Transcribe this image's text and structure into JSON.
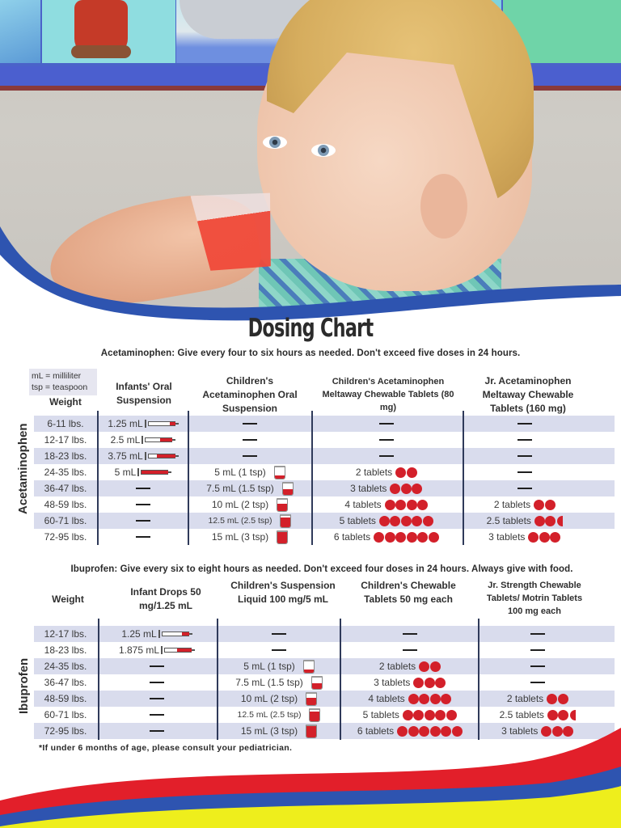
{
  "title": "Dosing Chart",
  "colors": {
    "brand_blue": "#2e54b0",
    "brand_red": "#e21f2a",
    "brand_yellow": "#eeee1c",
    "row_shade": "#d9dced",
    "dose_red": "#d3202a"
  },
  "legend": {
    "line1": "mL = milliliter",
    "line2": "tsp = teaspoon"
  },
  "acetaminophen": {
    "instruction": "Acetaminophen: Give every four to six hours as needed. Don't exceed five doses in 24 hours.",
    "side_label": "Acetaminophen",
    "headers": {
      "weight": "Weight",
      "infants_oral": "Infants' Oral Suspension",
      "childrens_oral": "Children's Acetaminophen Oral Suspension",
      "childrens_meltaway": "Children's Acetaminophen Meltaway Chewable Tablets (80 mg)",
      "jr_meltaway": "Jr. Acetaminophen Meltaway Chewable Tablets (160 mg)"
    },
    "rows": [
      {
        "weight": "6-11 lbs.",
        "infants": "1.25 mL",
        "infants_fill": 0.12,
        "childrens": "—",
        "childrens_fill": 0,
        "meltaway80": "—",
        "meltaway80_count": 0,
        "meltaway160": "—",
        "meltaway160_count": 0
      },
      {
        "weight": "12-17 lbs.",
        "infants": "2.5 mL",
        "infants_fill": 0.25,
        "childrens": "—",
        "childrens_fill": 0,
        "meltaway80": "—",
        "meltaway80_count": 0,
        "meltaway160": "—",
        "meltaway160_count": 0
      },
      {
        "weight": "18-23 lbs.",
        "infants": "3.75 mL",
        "infants_fill": 0.38,
        "childrens": "—",
        "childrens_fill": 0,
        "meltaway80": "—",
        "meltaway80_count": 0,
        "meltaway160": "—",
        "meltaway160_count": 0
      },
      {
        "weight": "24-35 lbs.",
        "infants": "5 mL",
        "infants_fill": 0.55,
        "childrens": "5 mL (1 tsp)",
        "childrens_fill": 0.25,
        "meltaway80": "2 tablets",
        "meltaway80_count": 2,
        "meltaway160": "—",
        "meltaway160_count": 0
      },
      {
        "weight": "36-47 lbs.",
        "infants": "—",
        "infants_fill": 0,
        "childrens": "7.5 mL (1.5 tsp)",
        "childrens_fill": 0.45,
        "meltaway80": "3 tablets",
        "meltaway80_count": 3,
        "meltaway160": "—",
        "meltaway160_count": 0
      },
      {
        "weight": "48-59 lbs.",
        "infants": "—",
        "infants_fill": 0,
        "childrens": "10 mL (2 tsp)",
        "childrens_fill": 0.6,
        "meltaway80": "4 tablets",
        "meltaway80_count": 4,
        "meltaway160": "2 tablets",
        "meltaway160_count": 2
      },
      {
        "weight": "60-71 lbs.",
        "infants": "—",
        "infants_fill": 0,
        "childrens": "12.5 mL (2.5 tsp)",
        "childrens_fill": 0.8,
        "meltaway80": "5 tablets",
        "meltaway80_count": 5,
        "meltaway160": "2.5 tablets",
        "meltaway160_count": 2.5
      },
      {
        "weight": "72-95 lbs.",
        "infants": "—",
        "infants_fill": 0,
        "childrens": "15 mL (3 tsp)",
        "childrens_fill": 0.95,
        "meltaway80": "6 tablets",
        "meltaway80_count": 6,
        "meltaway160": "3 tablets",
        "meltaway160_count": 3
      }
    ]
  },
  "ibuprofen": {
    "instruction": "Ibuprofen: Give every six to eight hours as needed. Don't exceed four doses in 24 hours. Always give with food.",
    "side_label": "Ibuprofen",
    "headers": {
      "weight": "Weight",
      "infant_drops": "Infant Drops 50 mg/1.25 mL",
      "childrens_suspension": "Children's Suspension Liquid 100 mg/5 mL",
      "childrens_chewable": "Children's Chewable Tablets 50 mg each",
      "jr_strength": "Jr. Strength Chewable Tablets/ Motrin Tablets 100 mg each"
    },
    "rows": [
      {
        "weight": "12-17 lbs.",
        "drops": "1.25 mL",
        "drops_fill": 0.15,
        "suspension": "—",
        "suspension_fill": 0,
        "chewable": "—",
        "chewable_count": 0,
        "jr": "—",
        "jr_count": 0
      },
      {
        "weight": "18-23 lbs.",
        "drops": "1.875 mL",
        "drops_fill": 0.3,
        "suspension": "—",
        "suspension_fill": 0,
        "chewable": "—",
        "chewable_count": 0,
        "jr": "—",
        "jr_count": 0
      },
      {
        "weight": "24-35 lbs.",
        "drops": "—",
        "drops_fill": 0,
        "suspension": "5 mL (1 tsp)",
        "suspension_fill": 0.25,
        "chewable": "2 tablets",
        "chewable_count": 2,
        "jr": "—",
        "jr_count": 0
      },
      {
        "weight": "36-47 lbs.",
        "drops": "—",
        "drops_fill": 0,
        "suspension": "7.5 mL (1.5 tsp)",
        "suspension_fill": 0.45,
        "chewable": "3 tablets",
        "chewable_count": 3,
        "jr": "—",
        "jr_count": 0
      },
      {
        "weight": "48-59 lbs.",
        "drops": "—",
        "drops_fill": 0,
        "suspension": "10 mL (2 tsp)",
        "suspension_fill": 0.6,
        "chewable": "4 tablets",
        "chewable_count": 4,
        "jr": "2 tablets",
        "jr_count": 2
      },
      {
        "weight": "60-71 lbs.",
        "drops": "—",
        "drops_fill": 0,
        "suspension": "12.5 mL (2.5 tsp)",
        "suspension_fill": 0.8,
        "chewable": "5 tablets",
        "chewable_count": 5,
        "jr": "2.5 tablets",
        "jr_count": 2.5
      },
      {
        "weight": "72-95 lbs.",
        "drops": "—",
        "drops_fill": 0,
        "suspension": "15 mL (3 tsp)",
        "suspension_fill": 0.95,
        "chewable": "6 tablets",
        "chewable_count": 6,
        "jr": "3 tablets",
        "jr_count": 3
      }
    ]
  },
  "footnote": "*If under 6 months of age, please consult your pediatrician."
}
